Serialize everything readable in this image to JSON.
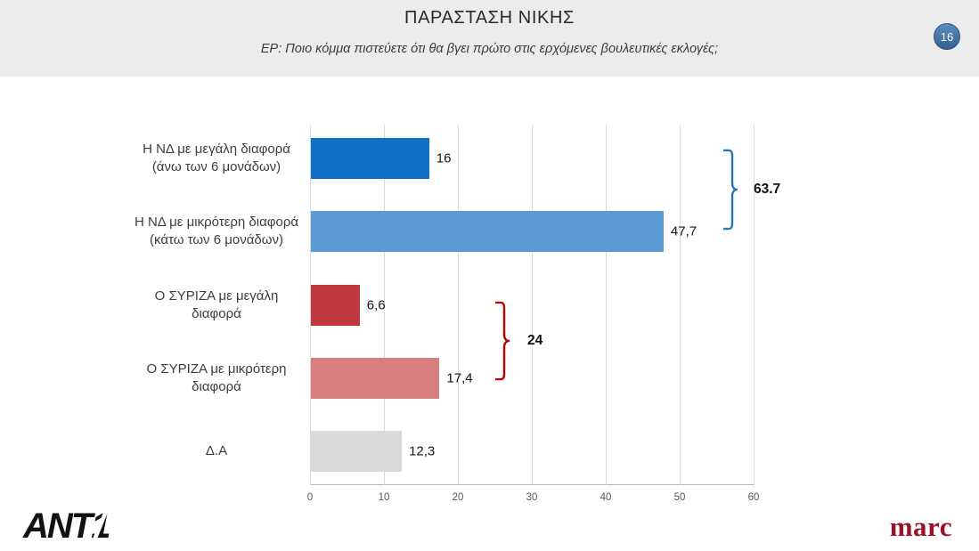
{
  "slide": {
    "title": "ΠΑΡΑΣΤΑΣΗ ΝΙΚΗΣ",
    "subtitle": "ΕΡ: Ποιο κόμμα πιστεύετε ότι θα βγει πρώτο στις ερχόμενες βουλευτικές εκλογές;",
    "page_number": "16"
  },
  "chart_data": {
    "type": "bar",
    "orientation": "horizontal",
    "title": "ΠΑΡΑΣΤΑΣΗ ΝΙΚΗΣ",
    "xlabel": "",
    "ylabel": "",
    "xlim": [
      0,
      60
    ],
    "grid": "vertical",
    "legend": "none",
    "categories": [
      "Η ΝΔ με μεγάλη διαφορά (άνω των 6 μονάδων)",
      "Η ΝΔ με μικρότερη διαφορά (κάτω των 6 μονάδων)",
      "Ο ΣΥΡΙΖΑ με μεγάλη διαφορά",
      "Ο ΣΥΡΙΖΑ με μικρότερη διαφορά",
      "Δ.Α"
    ],
    "values": [
      16,
      47.7,
      6.6,
      17.4,
      12.3
    ],
    "value_labels": [
      "16",
      "47,7",
      "6,6",
      "17,4",
      "12,3"
    ],
    "bar_colors": [
      "#0f6fc6",
      "#5b9bd5",
      "#c0393e",
      "#d97e7e",
      "#d9d9d9"
    ],
    "x_ticks": [
      "0",
      "10",
      "20",
      "30",
      "40",
      "50",
      "60"
    ],
    "annotations": [
      {
        "label": "63.7",
        "covers_bars": [
          0,
          1
        ],
        "color": "#2e75b6"
      },
      {
        "label": "24",
        "covers_bars": [
          2,
          3
        ],
        "color": "#c00000"
      }
    ]
  },
  "footer": {
    "channel_logo": "ANT1",
    "agency_logo": "marc"
  }
}
